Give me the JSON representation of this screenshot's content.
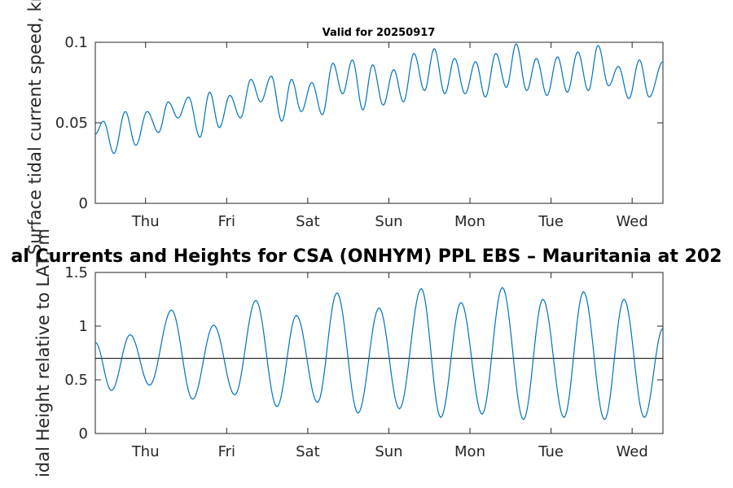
{
  "chart_data": [
    {
      "type": "line",
      "title": "Valid for 20250917",
      "ylabel": "Surface tidal current speed, kn",
      "xlabel": "",
      "xlim": [
        0,
        7
      ],
      "ylim": [
        0,
        0.1
      ],
      "yticks": [
        0,
        0.05,
        0.1
      ],
      "ytick_labels": [
        "0",
        "0.05",
        "0.1"
      ],
      "xticks": [
        0.62,
        1.62,
        2.62,
        3.62,
        4.62,
        5.62,
        6.62
      ],
      "xtick_labels": [
        "Thu",
        "Fri",
        "Sat",
        "Sun",
        "Mon",
        "Tue",
        "Wed"
      ],
      "grid": false,
      "color": "#0072BD",
      "series": [
        {
          "x": [
            0,
            0.1,
            0.23,
            0.37,
            0.5,
            0.64,
            0.78,
            0.9,
            1.02,
            1.15,
            1.29,
            1.41,
            1.53,
            1.66,
            1.79,
            1.92,
            2.04,
            2.17,
            2.3,
            2.42,
            2.54,
            2.67,
            2.8,
            2.93,
            3.05,
            3.17,
            3.3,
            3.42,
            3.55,
            3.68,
            3.8,
            3.93,
            4.06,
            4.18,
            4.31,
            4.43,
            4.56,
            4.69,
            4.81,
            4.94,
            5.07,
            5.19,
            5.32,
            5.44,
            5.57,
            5.7,
            5.82,
            5.95,
            6.08,
            6.2,
            6.33,
            6.45,
            6.58,
            6.71,
            6.83,
            7.0
          ],
          "y": [
            0.043,
            0.051,
            0.031,
            0.057,
            0.036,
            0.057,
            0.044,
            0.063,
            0.053,
            0.066,
            0.041,
            0.069,
            0.047,
            0.067,
            0.053,
            0.077,
            0.063,
            0.079,
            0.051,
            0.077,
            0.057,
            0.075,
            0.055,
            0.087,
            0.068,
            0.089,
            0.058,
            0.086,
            0.061,
            0.083,
            0.063,
            0.093,
            0.07,
            0.096,
            0.068,
            0.09,
            0.068,
            0.088,
            0.066,
            0.093,
            0.072,
            0.099,
            0.07,
            0.09,
            0.067,
            0.091,
            0.069,
            0.094,
            0.07,
            0.098,
            0.073,
            0.085,
            0.065,
            0.089,
            0.066,
            0.088
          ]
        }
      ]
    },
    {
      "type": "line",
      "title": "al Currents and Heights for CSA (ONHYM) PPL EBS  – Mauritania at 202",
      "ylabel": "idal Height relative to LAT, m",
      "xlabel": "",
      "xlim": [
        0,
        7
      ],
      "ylim": [
        0,
        1.5
      ],
      "yticks": [
        0,
        0.5,
        1,
        1.5
      ],
      "ytick_labels": [
        "0",
        "0.5",
        "1",
        "1.5"
      ],
      "xticks": [
        0.62,
        1.62,
        2.62,
        3.62,
        4.62,
        5.62,
        6.62
      ],
      "xtick_labels": [
        "Thu",
        "Fri",
        "Sat",
        "Sun",
        "Mon",
        "Tue",
        "Wed"
      ],
      "reference_line": 0.7,
      "grid": false,
      "color": "#0072BD",
      "series": [
        {
          "x": [
            0,
            0.2,
            0.43,
            0.67,
            0.94,
            1.2,
            1.46,
            1.72,
            1.98,
            2.24,
            2.48,
            2.74,
            2.98,
            3.24,
            3.5,
            3.75,
            4.02,
            4.26,
            4.51,
            4.77,
            5.02,
            5.28,
            5.52,
            5.78,
            6.02,
            6.28,
            6.52,
            6.77,
            7.0
          ],
          "y": [
            0.85,
            0.4,
            0.92,
            0.45,
            1.15,
            0.32,
            1.01,
            0.36,
            1.24,
            0.25,
            1.1,
            0.29,
            1.31,
            0.19,
            1.17,
            0.23,
            1.35,
            0.15,
            1.22,
            0.18,
            1.36,
            0.13,
            1.25,
            0.15,
            1.32,
            0.13,
            1.25,
            0.15,
            0.98
          ]
        }
      ]
    }
  ]
}
